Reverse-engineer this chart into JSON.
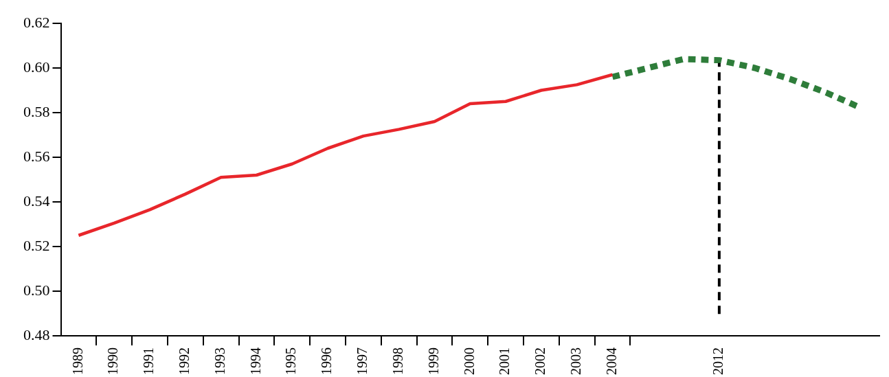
{
  "chart_data": {
    "type": "line",
    "categories": [
      "1989",
      "1990",
      "1991",
      "1992",
      "1993",
      "1994",
      "1995",
      "1996",
      "1997",
      "1998",
      "1999",
      "2000",
      "2001",
      "2002",
      "2003",
      "2004",
      null,
      null,
      "2012",
      null,
      null,
      null,
      null
    ],
    "series": [
      {
        "color": "#e8262b",
        "line_style": "solid",
        "values": [
          0.525,
          0.5305,
          0.5365,
          0.5435,
          0.551,
          0.552,
          0.557,
          0.564,
          0.5695,
          0.5725,
          0.576,
          0.584,
          0.585,
          0.59,
          0.5925,
          0.597,
          null,
          null,
          null,
          null,
          null,
          null,
          null
        ]
      },
      {
        "color": "#2e7d3a",
        "line_style": "dotted",
        "values": [
          null,
          null,
          null,
          null,
          null,
          null,
          null,
          null,
          null,
          null,
          null,
          null,
          null,
          null,
          null,
          0.596,
          0.6,
          0.604,
          0.6035,
          0.6,
          0.595,
          0.589,
          0.582
        ]
      }
    ],
    "ylim": [
      0.48,
      0.62
    ],
    "yticks": [
      0.48,
      {
        "value": 0.5,
        "label": "0.50"
      },
      0.52,
      0.54,
      0.56,
      0.58,
      {
        "value": 0.6,
        "label": "0.60"
      },
      0.62
    ],
    "ref_lines": [
      {
        "axis": "x",
        "value": "2012",
        "color": "#000000",
        "line_style": "dashed"
      }
    ],
    "grid": false,
    "legend": false,
    "marker": "none"
  }
}
